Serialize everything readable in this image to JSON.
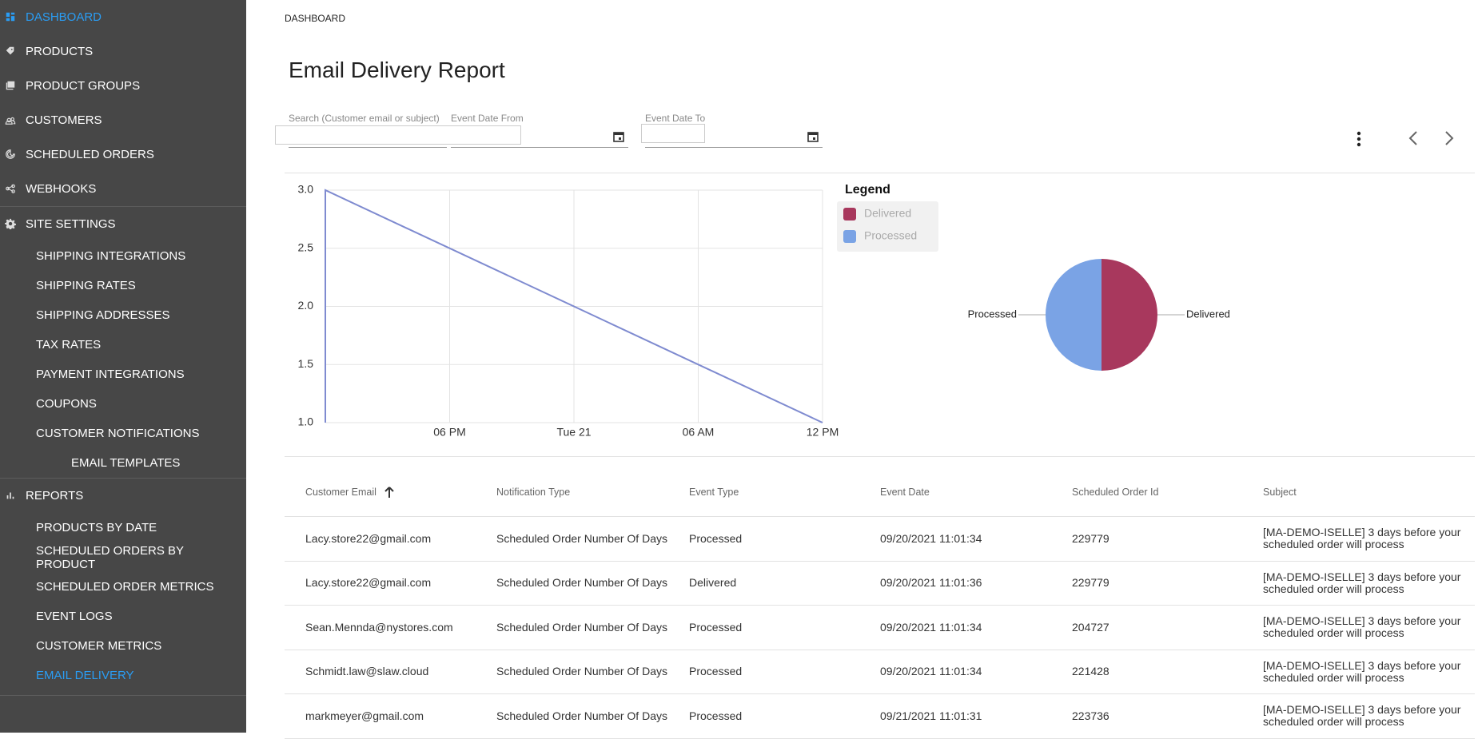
{
  "sidebar": {
    "items": [
      {
        "label": "DASHBOARD",
        "active": true
      },
      {
        "label": "PRODUCTS"
      },
      {
        "label": "PRODUCT GROUPS"
      },
      {
        "label": "CUSTOMERS"
      },
      {
        "label": "SCHEDULED ORDERS"
      },
      {
        "label": "WEBHOOKS"
      },
      {
        "label": "SITE SETTINGS",
        "children": [
          {
            "label": "SHIPPING INTEGRATIONS"
          },
          {
            "label": "SHIPPING RATES"
          },
          {
            "label": "SHIPPING ADDRESSES"
          },
          {
            "label": "TAX RATES"
          },
          {
            "label": "PAYMENT INTEGRATIONS"
          },
          {
            "label": "COUPONS"
          },
          {
            "label": "CUSTOMER NOTIFICATIONS",
            "children": [
              {
                "label": "EMAIL TEMPLATES"
              }
            ]
          }
        ]
      },
      {
        "label": "REPORTS",
        "children": [
          {
            "label": "PRODUCTS BY DATE"
          },
          {
            "label": "SCHEDULED ORDERS BY PRODUCT"
          },
          {
            "label": "SCHEDULED ORDER METRICS"
          },
          {
            "label": "EVENT LOGS"
          },
          {
            "label": "CUSTOMER METRICS"
          },
          {
            "label": "EMAIL DELIVERY",
            "active": true
          }
        ]
      }
    ]
  },
  "breadcrumb": "DASHBOARD",
  "title": "Email Delivery Report",
  "filters": {
    "search_label": "Search (Customer email or subject)",
    "from_label": "Event Date From",
    "to_label": "Event Date To"
  },
  "chart_data": [
    {
      "type": "line",
      "x": [
        0,
        0,
        24
      ],
      "xlim": [
        0,
        24
      ],
      "xticks": [
        {
          "value": 6,
          "label": "06 PM"
        },
        {
          "value": 12,
          "label": "Tue 21"
        },
        {
          "value": 18,
          "label": "06 AM"
        },
        {
          "value": 24,
          "label": "12 PM"
        }
      ],
      "series": [
        {
          "color": "#7f8bd0",
          "values": [
            1,
            3,
            1
          ]
        }
      ],
      "ylim": [
        1,
        3
      ],
      "yticks": [
        {
          "value": 1,
          "label": "1.0"
        },
        {
          "value": 1.5,
          "label": "1.5"
        },
        {
          "value": 2,
          "label": "2.0"
        },
        {
          "value": 2.5,
          "label": "2.5"
        },
        {
          "value": 3,
          "label": "3.0"
        }
      ],
      "grid": true
    },
    {
      "type": "pie",
      "legend_title": "Legend",
      "categories": [
        "Delivered",
        "Processed"
      ],
      "values": [
        50,
        50
      ],
      "colors": [
        "#a8385d",
        "#7aa3e5"
      ]
    }
  ],
  "table": {
    "columns": [
      "Customer Email",
      "Notification Type",
      "Event Type",
      "Event Date",
      "Scheduled Order Id",
      "Subject"
    ],
    "rows": [
      [
        "Lacy.store22@gmail.com",
        "Scheduled Order Number Of Days",
        "Processed",
        "09/20/2021 11:01:34",
        "229779",
        "[MA-DEMO-ISELLE] 3 days before your scheduled order will process"
      ],
      [
        "Lacy.store22@gmail.com",
        "Scheduled Order Number Of Days",
        "Delivered",
        "09/20/2021 11:01:36",
        "229779",
        "[MA-DEMO-ISELLE] 3 days before your scheduled order will process"
      ],
      [
        "Sean.Mennda@nystores.com",
        "Scheduled Order Number Of Days",
        "Processed",
        "09/20/2021 11:01:34",
        "204727",
        "[MA-DEMO-ISELLE] 3 days before your scheduled order will process"
      ],
      [
        "Schmidt.law@slaw.cloud",
        "Scheduled Order Number Of Days",
        "Processed",
        "09/20/2021 11:01:34",
        "221428",
        "[MA-DEMO-ISELLE] 3 days before your scheduled order will process"
      ],
      [
        "markmeyer@gmail.com",
        "Scheduled Order Number Of Days",
        "Processed",
        "09/21/2021 11:01:31",
        "223736",
        "[MA-DEMO-ISELLE] 3 days before your scheduled order will process"
      ]
    ]
  }
}
